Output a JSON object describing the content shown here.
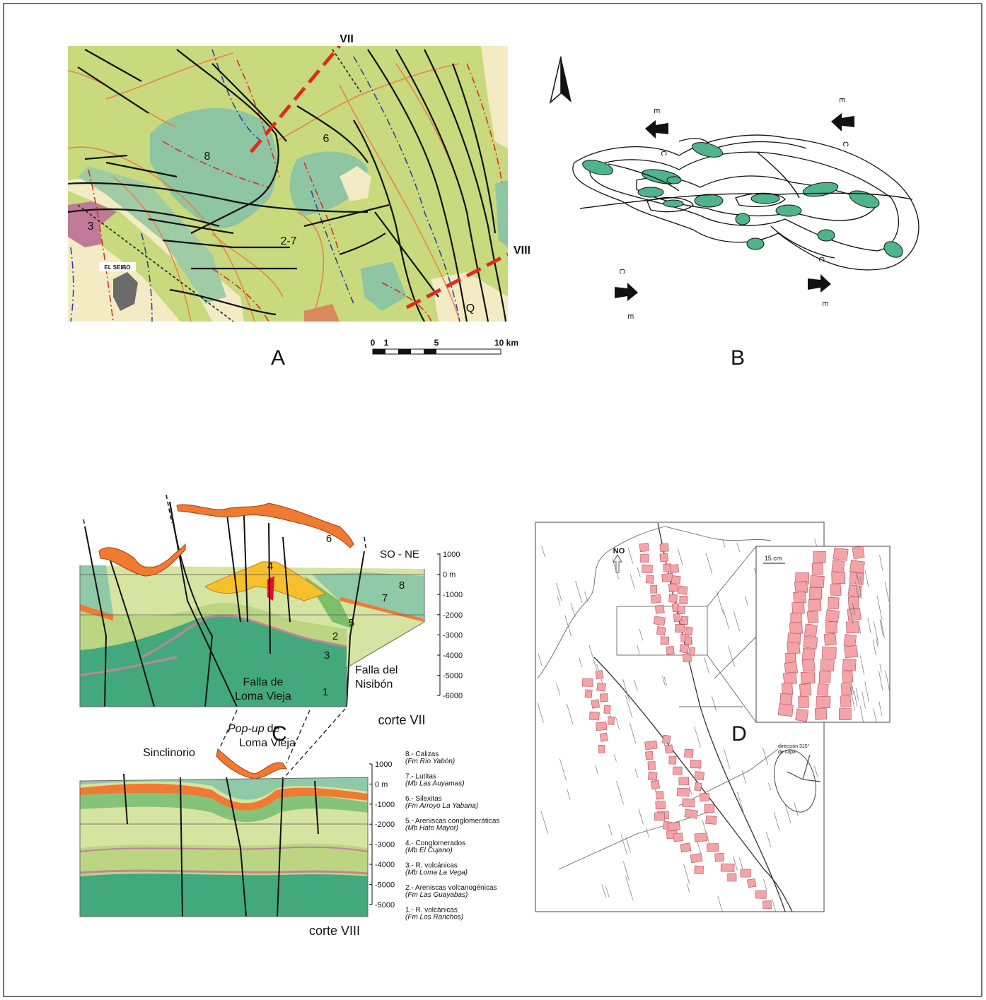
{
  "panel_a": {
    "label": "A",
    "section_lines": [
      "VII",
      "VIII"
    ],
    "units": [
      "8",
      "6",
      "3",
      "2-7",
      "Q"
    ],
    "town": "EL SEIBO",
    "scale": [
      "0",
      "1",
      "5",
      "10 km"
    ]
  },
  "panel_b": {
    "label": "B",
    "stress_arrows": [
      {
        "e": "E",
        "c": "C"
      },
      {
        "e": "E",
        "c": "C"
      },
      {
        "e": "E",
        "c": "C"
      },
      {
        "e": "E",
        "c": "C"
      }
    ]
  },
  "panel_c": {
    "label": "C",
    "orientation": "SO - NE",
    "popup": [
      "Pop-up",
      "de",
      "Loma Vieja"
    ],
    "corte_vii": {
      "title": "corte VII",
      "depths": [
        "1000",
        "0 m",
        "-1000",
        "-2000",
        "-3000",
        "-4000",
        "-5000",
        "-6000"
      ],
      "units": [
        "4",
        "6",
        "8",
        "7",
        "5",
        "2",
        "3",
        "1"
      ],
      "fault_east": [
        "Falla del",
        "Nisibón"
      ],
      "fault_west": [
        "Falla de",
        "Loma Vieja"
      ]
    },
    "corte_viii": {
      "title": "corte VIII",
      "syncline": "Sinclinorio",
      "depths": [
        "1000",
        "0 m",
        "-1000",
        "-2000",
        "-3000",
        "-4000",
        "-5000",
        "-5000"
      ]
    },
    "legend": [
      {
        "name": "8.- Calizas",
        "formation": "(Fm Río Yabón)"
      },
      {
        "name": "7.- Lutitas",
        "formation": "(Mb Las Auyamas)"
      },
      {
        "name": "6.- Silexitas",
        "formation": "(Fm Arroyo La Yabana)"
      },
      {
        "name": "5.- Areniscas conglomeráticas",
        "formation": "(Mb Hato Mayor)"
      },
      {
        "name": "4.- Conglomerados",
        "formation": "(Mb El Cujano)"
      },
      {
        "name": "3.- R. volcánicas",
        "formation": "(Mb Loma La Vega)"
      },
      {
        "name": "2.- Areniscas volcanogénicas",
        "formation": "(Fm Las Guayabas)"
      },
      {
        "name": "1.- R. volcánicas",
        "formation": "(Fm Los Ranchos)"
      }
    ]
  },
  "panel_d": {
    "label": "D",
    "north": "NO",
    "scale": "15 cm",
    "direction": [
      "dirección 315°",
      "de capa"
    ]
  }
}
